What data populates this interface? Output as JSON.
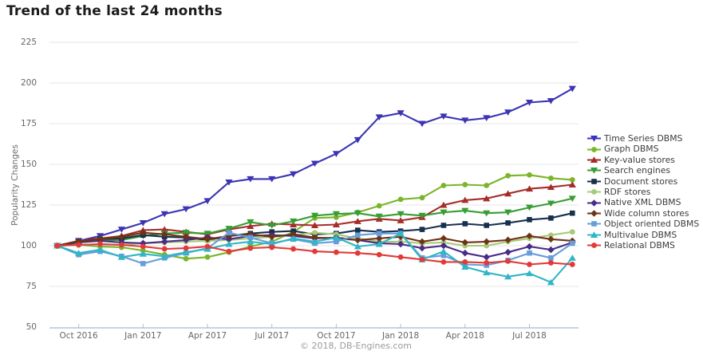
{
  "page": {
    "title": "Trend of the last 24 months",
    "footer": "© 2018, DB-Engines.com"
  },
  "chart_data": {
    "type": "line",
    "title": "Trend of the last 24 months",
    "xlabel": "",
    "ylabel": "Popularity Changes",
    "ylim": [
      50,
      225
    ],
    "yticks": [
      225,
      200,
      175,
      150,
      125,
      100,
      75,
      50
    ],
    "xtick_labels": [
      "Oct 2016",
      "Jan 2017",
      "Apr 2017",
      "Jul 2017",
      "Oct 2017",
      "Jan 2018",
      "Apr 2018",
      "Jul 2018"
    ],
    "x": [
      "Sep 2016",
      "Oct 2016",
      "Nov 2016",
      "Dec 2016",
      "Jan 2017",
      "Feb 2017",
      "Mar 2017",
      "Apr 2017",
      "May 2017",
      "Jun 2017",
      "Jul 2017",
      "Aug 2017",
      "Sep 2017",
      "Oct 2017",
      "Nov 2017",
      "Dec 2017",
      "Jan 2018",
      "Feb 2018",
      "Mar 2018",
      "Apr 2018",
      "May 2018",
      "Jun 2018",
      "Jul 2018",
      "Aug 2018",
      "Sep 2018"
    ],
    "grid": true,
    "grid_color": "#e4e4e4",
    "axis_color": "#abc9de",
    "tick_color": "#bbbbbb",
    "legend_position": "right",
    "series": [
      {
        "name": "Time Series DBMS",
        "color": "#3b35b4",
        "marker": "triangle-down",
        "values": [
          100,
          103,
          106,
          110,
          114,
          119.5,
          122.5,
          127.5,
          139,
          141,
          141,
          144,
          150.5,
          156.5,
          165,
          179,
          181.5,
          175,
          179.5,
          177,
          178.5,
          182,
          188,
          189,
          196.5
        ]
      },
      {
        "name": "Graph DBMS",
        "color": "#7ab52a",
        "marker": "circle",
        "values": [
          100,
          100.5,
          99.5,
          99,
          97,
          94.5,
          92,
          93,
          96,
          99.5,
          102.5,
          108.5,
          117,
          117.5,
          120.5,
          124.5,
          128.5,
          129.5,
          137,
          137.5,
          137,
          143,
          143.5,
          141.5,
          140.5
        ]
      },
      {
        "name": "Key-value stores",
        "color": "#a62c2a",
        "marker": "triangle-up",
        "values": [
          100,
          103,
          104.5,
          106,
          109.5,
          110,
          108.5,
          107,
          110,
          112,
          113.5,
          113,
          112.5,
          113,
          115,
          116.5,
          115.5,
          117.5,
          125,
          128,
          129,
          132,
          135,
          136,
          137.5
        ]
      },
      {
        "name": "Search engines",
        "color": "#369e33",
        "marker": "triangle-down",
        "values": [
          100,
          102,
          103.5,
          103.5,
          106,
          107.5,
          108,
          107.5,
          110.5,
          114.5,
          112.5,
          115,
          118.5,
          119.5,
          120,
          118,
          119.5,
          118.5,
          120.5,
          121.5,
          120,
          120.5,
          123.5,
          126,
          129
        ]
      },
      {
        "name": "Document stores",
        "color": "#17304e",
        "marker": "square",
        "values": [
          100,
          102.5,
          104,
          104.5,
          106.5,
          105.5,
          105,
          103.5,
          106,
          107.5,
          108.5,
          109,
          107,
          107.5,
          109.5,
          108.5,
          109,
          110,
          112.5,
          113.5,
          112.5,
          114,
          116,
          117,
          120
        ]
      },
      {
        "name": "RDF stores",
        "color": "#a8ca77",
        "marker": "circle",
        "values": [
          100,
          100.5,
          101,
          100.5,
          101.5,
          102,
          102.5,
          103,
          103.5,
          104.5,
          105.5,
          106.5,
          108,
          107,
          104.5,
          102.5,
          102.5,
          101.5,
          102,
          100,
          100,
          102.5,
          104.5,
          106.5,
          108.5
        ]
      },
      {
        "name": "Native XML DBMS",
        "color": "#4a2b87",
        "marker": "diamond",
        "values": [
          100,
          102,
          103,
          102,
          101.5,
          102.5,
          103.5,
          105,
          104,
          106,
          106.5,
          106,
          104.5,
          105,
          103.5,
          101.5,
          101,
          98.5,
          100,
          95.5,
          93,
          96,
          99.5,
          97.5,
          102
        ]
      },
      {
        "name": "Wide column stores",
        "color": "#6f3317",
        "marker": "diamond",
        "values": [
          100,
          102.5,
          104,
          105.5,
          108,
          107,
          105.5,
          104,
          106,
          107,
          105.5,
          107,
          105,
          104.5,
          103.5,
          104.5,
          105.5,
          102.5,
          104.5,
          102,
          102.5,
          103.5,
          106,
          104,
          103
        ]
      },
      {
        "name": "Object oriented DBMS",
        "color": "#669ddb",
        "marker": "square",
        "values": [
          100,
          94.5,
          96.5,
          93.5,
          89,
          92.5,
          95.5,
          98.5,
          108,
          105,
          101.5,
          104,
          101.5,
          102.5,
          106.5,
          107.5,
          107.5,
          92.5,
          94,
          88.5,
          88,
          91,
          95.5,
          92.5,
          101.5
        ]
      },
      {
        "name": "Multivalue DBMS",
        "color": "#30b6c5",
        "marker": "triangle-up",
        "values": [
          100,
          95.5,
          97.5,
          93,
          95,
          93.5,
          96,
          98,
          101,
          102.5,
          101,
          104.5,
          102.5,
          105,
          99.5,
          101,
          107.5,
          91.5,
          96.5,
          87,
          83.5,
          81,
          83,
          77.5,
          92.5
        ]
      },
      {
        "name": "Relational DBMS",
        "color": "#e23a38",
        "marker": "circle",
        "values": [
          100,
          100.5,
          101,
          100.5,
          99.5,
          98,
          98.5,
          99.5,
          96.5,
          98.5,
          99,
          98,
          96.5,
          96,
          95.5,
          94.5,
          93,
          91.5,
          90,
          90,
          89.5,
          90.5,
          88.5,
          89.5,
          88.5
        ]
      }
    ]
  }
}
